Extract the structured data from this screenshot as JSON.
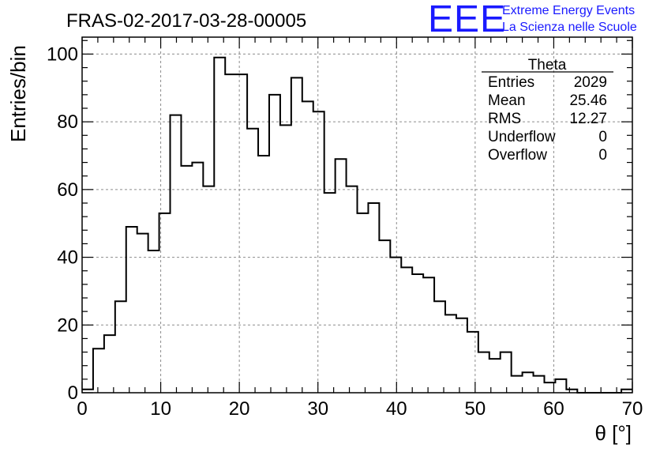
{
  "chart_data": {
    "type": "histogram",
    "title": "FRAS-02-2017-03-28-00005",
    "xlabel": "θ [°]",
    "ylabel": "Entries/bin",
    "xlim": [
      0,
      70
    ],
    "ylim": [
      0,
      105
    ],
    "bin_width": 1.4,
    "x_ticks": [
      0,
      10,
      20,
      30,
      40,
      50,
      60,
      70
    ],
    "y_ticks": [
      0,
      20,
      40,
      60,
      80,
      100
    ],
    "grid": true,
    "bin_edges_start": 0,
    "values": [
      1,
      13,
      17,
      27,
      49,
      47,
      42,
      53,
      82,
      67,
      68,
      61,
      99,
      94,
      94,
      78,
      70,
      88,
      79,
      93,
      86,
      83,
      59,
      69,
      61,
      53,
      56,
      45,
      40,
      37,
      35,
      34,
      27,
      23,
      22,
      18,
      12,
      10,
      12,
      5,
      6,
      5,
      3,
      4,
      1,
      0,
      0,
      0,
      0,
      1
    ]
  },
  "stats_box": {
    "name": "Theta",
    "rows": [
      {
        "label": "Entries",
        "value": "2029"
      },
      {
        "label": "Mean",
        "value": "25.46"
      },
      {
        "label": "RMS",
        "value": "12.27"
      },
      {
        "label": "Underflow",
        "value": "0"
      },
      {
        "label": "Overflow",
        "value": "0"
      }
    ]
  },
  "logo": {
    "mark": "EEE",
    "line1": "Extreme Energy Events",
    "line2": "La Scienza nelle Scuole",
    "color": "#1a1aff"
  }
}
